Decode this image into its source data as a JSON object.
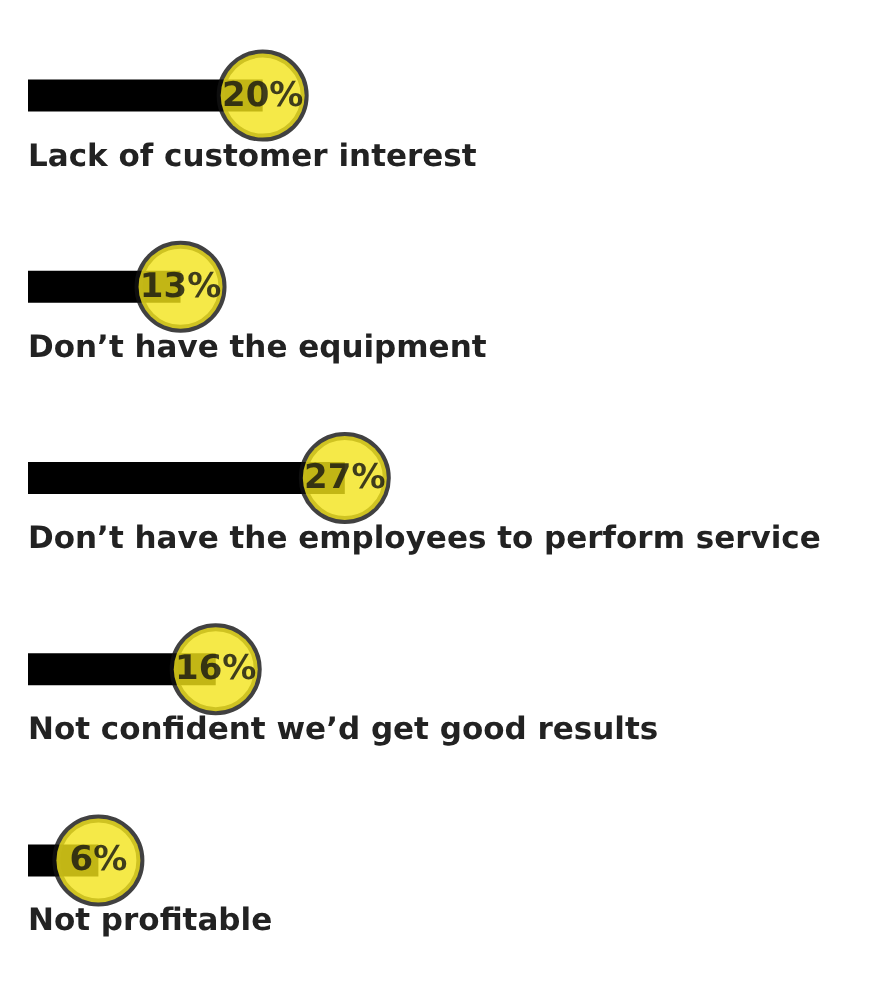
{
  "chart_data": {
    "type": "bar",
    "orientation": "horizontal",
    "categories": [
      "Lack of customer interest",
      "Don’t have the equipment",
      "Don’t have the employees to perform service",
      "Not confident we’d get good results",
      "Not profitable"
    ],
    "values": [
      20,
      13,
      27,
      16,
      6
    ],
    "value_labels": [
      "20%",
      "13%",
      "27%",
      "16%",
      "6%"
    ],
    "color": "#000000"
  }
}
